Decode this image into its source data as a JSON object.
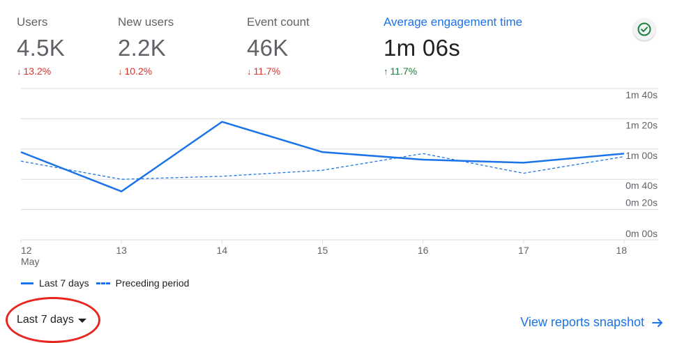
{
  "metrics": [
    {
      "label": "Users",
      "value": "4.5K",
      "change": "13.2%",
      "direction": "down"
    },
    {
      "label": "New users",
      "value": "2.2K",
      "change": "10.2%",
      "direction": "down"
    },
    {
      "label": "Event count",
      "value": "46K",
      "change": "11.7%",
      "direction": "down"
    },
    {
      "label": "Average engagement time",
      "value": "1m 06s",
      "change": "11.7%",
      "direction": "up"
    }
  ],
  "colors": {
    "accent": "#1a73e8",
    "down": "#d93025",
    "up": "#188038",
    "check": "#188038",
    "highlight": "#e8261f"
  },
  "icons": {
    "status": "check-circle-icon",
    "link_arrow": "arrow-right-icon",
    "dropdown": "caret-down-icon"
  },
  "chart_data": {
    "type": "line",
    "x": [
      "12",
      "13",
      "14",
      "15",
      "16",
      "17",
      "18"
    ],
    "x_month_label": "May",
    "y_unit": "seconds",
    "y_ticks": [
      "1m 40s",
      "1m 20s",
      "1m 00s",
      "0m 40s",
      "0m 20s",
      "0m 00s"
    ],
    "y_tick_values": [
      100,
      80,
      60,
      40,
      20,
      0
    ],
    "ylim": [
      0,
      100
    ],
    "series": [
      {
        "name": "Last 7 days",
        "style": "solid",
        "values": [
          58,
          32,
          78,
          58,
          53,
          51,
          57
        ]
      },
      {
        "name": "Preceding period",
        "style": "dashed",
        "values": [
          52,
          40,
          42,
          46,
          57,
          44,
          55
        ]
      }
    ],
    "grid": true
  },
  "controls": {
    "date_range": "Last 7 days",
    "snapshot_link": "View reports snapshot"
  }
}
